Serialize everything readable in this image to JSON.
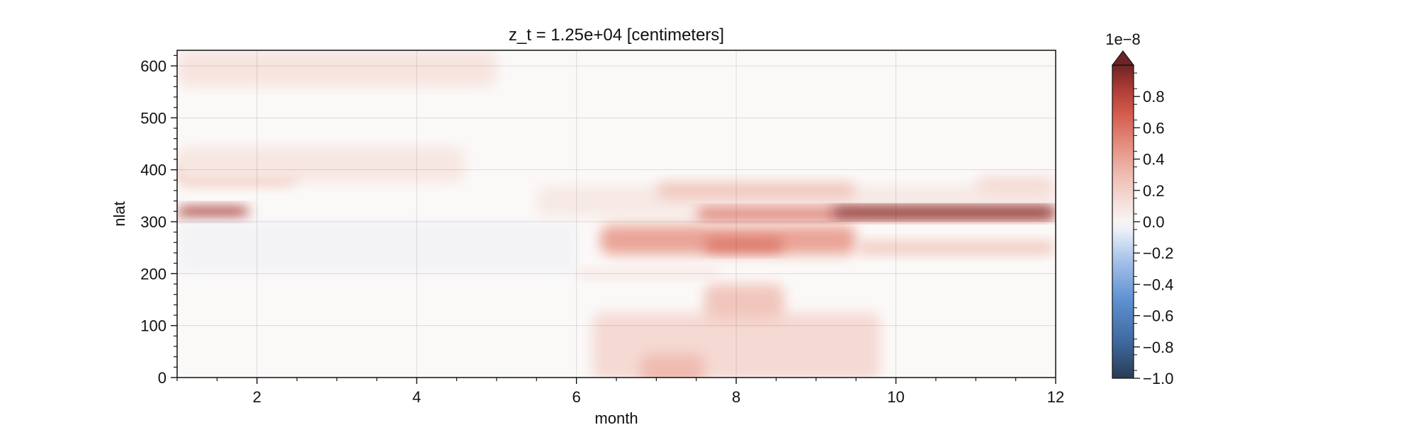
{
  "chart_data": {
    "type": "heatmap",
    "title": "z_t = 1.25e+04 [centimeters]",
    "xlabel": "month",
    "ylabel": "nlat",
    "xlim": [
      1,
      12
    ],
    "ylim": [
      0,
      630
    ],
    "x_ticks": [
      2,
      4,
      6,
      8,
      10,
      12
    ],
    "y_ticks": [
      0,
      100,
      200,
      300,
      400,
      500,
      600
    ],
    "grid": true,
    "colorbar": {
      "multiplier_label": "1e−8",
      "range": [
        -1.0,
        1.0
      ],
      "extend": "max",
      "ticks": [
        {
          "value": 0.8,
          "label": "0.8"
        },
        {
          "value": 0.6,
          "label": "0.6"
        },
        {
          "value": 0.4,
          "label": "0.4"
        },
        {
          "value": 0.2,
          "label": "0.2"
        },
        {
          "value": 0.0,
          "label": "0.0"
        },
        {
          "value": -0.2,
          "label": "−0.2"
        },
        {
          "value": -0.4,
          "label": "−0.4"
        },
        {
          "value": -0.6,
          "label": "−0.6"
        },
        {
          "value": -0.8,
          "label": "−0.8"
        },
        {
          "value": -1.0,
          "label": "−1.0"
        }
      ],
      "colormap": "red-blue diverging"
    },
    "features": [
      {
        "month_range": [
          1,
          1.9
        ],
        "nlat_center": 318,
        "nlat_halfwidth": 10,
        "value": 0.9
      },
      {
        "month_range": [
          1,
          2.5
        ],
        "nlat_center": 395,
        "nlat_halfwidth": 22,
        "value": 0.35
      },
      {
        "month_range": [
          1,
          4.6
        ],
        "nlat_center": 410,
        "nlat_halfwidth": 35,
        "value": 0.12
      },
      {
        "month_range": [
          1,
          5.0
        ],
        "nlat_center": 595,
        "nlat_halfwidth": 35,
        "value": 0.14
      },
      {
        "month_range": [
          1,
          6.0
        ],
        "nlat_center": 250,
        "nlat_halfwidth": 50,
        "value": -0.03
      },
      {
        "month_range": [
          5.5,
          12
        ],
        "nlat_center": 340,
        "nlat_halfwidth": 30,
        "value": 0.1
      },
      {
        "month_range": [
          7.0,
          9.5
        ],
        "nlat_center": 360,
        "nlat_halfwidth": 15,
        "value": 0.3
      },
      {
        "month_range": [
          6.3,
          9.5
        ],
        "nlat_center": 265,
        "nlat_halfwidth": 28,
        "value": 0.45
      },
      {
        "month_range": [
          7.6,
          8.6
        ],
        "nlat_center": 255,
        "nlat_halfwidth": 12,
        "value": 0.65
      },
      {
        "month_range": [
          7.5,
          12
        ],
        "nlat_center": 315,
        "nlat_halfwidth": 9,
        "value": 0.7
      },
      {
        "month_range": [
          9.2,
          12
        ],
        "nlat_center": 318,
        "nlat_halfwidth": 8,
        "value": 1.0
      },
      {
        "month_range": [
          9.5,
          12
        ],
        "nlat_center": 250,
        "nlat_halfwidth": 12,
        "value": 0.3
      },
      {
        "month_range": [
          11.0,
          12
        ],
        "nlat_center": 370,
        "nlat_halfwidth": 15,
        "value": 0.2
      },
      {
        "month_range": [
          6.2,
          9.8
        ],
        "nlat_center": 60,
        "nlat_halfwidth": 65,
        "value": 0.2
      },
      {
        "month_range": [
          6.8,
          7.6
        ],
        "nlat_center": 15,
        "nlat_halfwidth": 30,
        "value": 0.35
      },
      {
        "month_range": [
          7.6,
          8.6
        ],
        "nlat_center": 145,
        "nlat_halfwidth": 35,
        "value": 0.3
      },
      {
        "month_range": [
          6.0,
          7.8
        ],
        "nlat_center": 200,
        "nlat_halfwidth": 8,
        "value": 0.15
      }
    ]
  }
}
